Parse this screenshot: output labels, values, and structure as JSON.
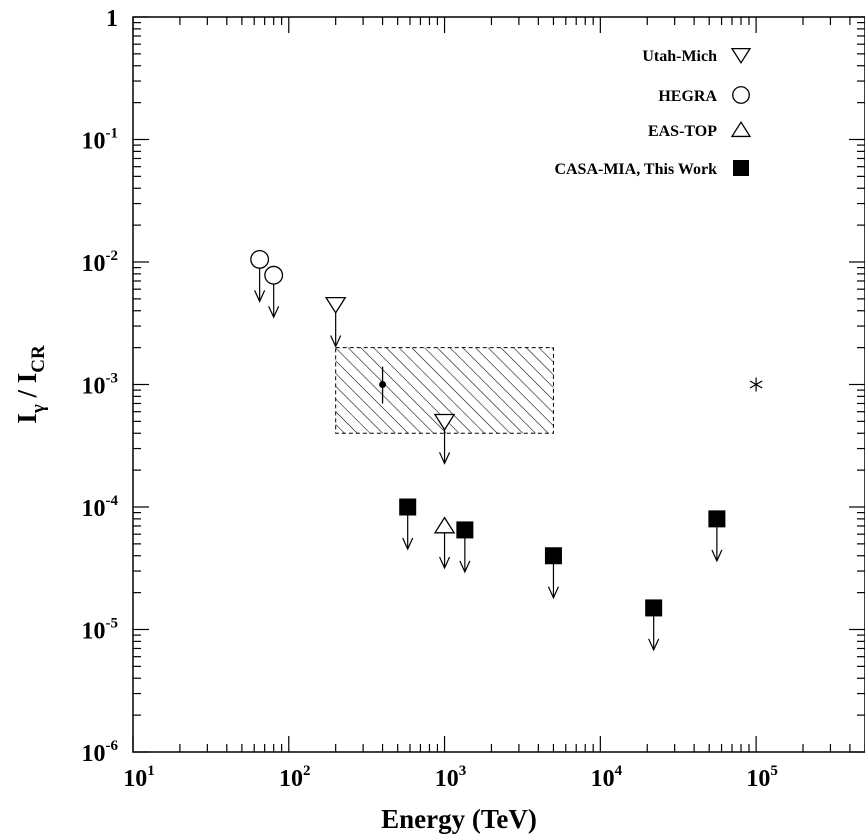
{
  "chart_data": {
    "type": "scatter",
    "x_scale": "log",
    "y_scale": "log",
    "xlim": [
      10,
      500000
    ],
    "ylim": [
      1e-06,
      1
    ],
    "xlabel": "Energy (TeV)",
    "ylabel_main": "I",
    "ylabel_sub_num": "γ",
    "ylabel_sep": " / ",
    "ylabel_sub_den": "CR",
    "x_ticks": [
      {
        "base": "10",
        "exp": "1",
        "value": 10
      },
      {
        "base": "10",
        "exp": "2",
        "value": 100
      },
      {
        "base": "10",
        "exp": "3",
        "value": 1000
      },
      {
        "base": "10",
        "exp": "4",
        "value": 10000
      },
      {
        "base": "10",
        "exp": "5",
        "value": 100000
      }
    ],
    "y_ticks": [
      {
        "base": "1",
        "exp": "",
        "value": 1
      },
      {
        "base": "10",
        "exp": "-1",
        "value": 0.1
      },
      {
        "base": "10",
        "exp": "-2",
        "value": 0.01
      },
      {
        "base": "10",
        "exp": "-3",
        "value": 0.001
      },
      {
        "base": "10",
        "exp": "-4",
        "value": 0.0001
      },
      {
        "base": "10",
        "exp": "-5",
        "value": 1e-05
      },
      {
        "base": "10",
        "exp": "-6",
        "value": 1e-06
      }
    ],
    "series": [
      {
        "name": "Utah-Mich",
        "marker": "triangle-down",
        "upper_limit": true,
        "points": [
          {
            "x": 200,
            "y": 0.0045
          },
          {
            "x": 1000,
            "y": 0.0005
          }
        ]
      },
      {
        "name": "HEGRA",
        "marker": "circle",
        "upper_limit": true,
        "points": [
          {
            "x": 65,
            "y": 0.0105
          },
          {
            "x": 80,
            "y": 0.0078
          }
        ]
      },
      {
        "name": "EAS-TOP",
        "marker": "triangle-up",
        "upper_limit": true,
        "points": [
          {
            "x": 1000,
            "y": 7e-05
          }
        ]
      },
      {
        "name": "CASA-MIA, This Work",
        "marker": "square-filled",
        "upper_limit": true,
        "points": [
          {
            "x": 580,
            "y": 0.0001
          },
          {
            "x": 1350,
            "y": 6.5e-05
          },
          {
            "x": 5000,
            "y": 4e-05
          },
          {
            "x": 22000,
            "y": 1.5e-05
          },
          {
            "x": 56000,
            "y": 8e-05
          }
        ]
      }
    ],
    "extra_points": [
      {
        "marker": "dot-errorbar",
        "x": 400,
        "y": 0.001,
        "y_err_low": 0.0007,
        "y_err_high": 0.0014
      },
      {
        "marker": "asterisk",
        "x": 100000,
        "y": 0.001
      }
    ],
    "region": {
      "x_range": [
        200,
        5000
      ],
      "y_range": [
        0.0004,
        0.002
      ],
      "fill": "hatched"
    },
    "legend_position": "top-right",
    "grid": false
  }
}
